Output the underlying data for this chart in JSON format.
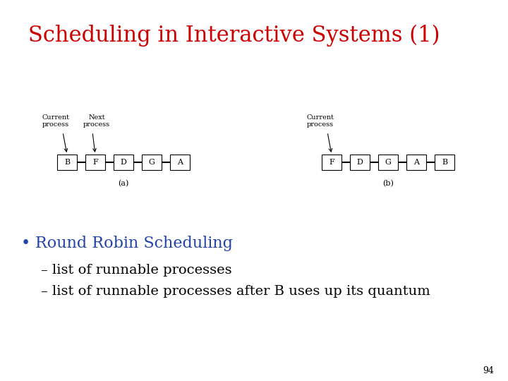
{
  "title": "Scheduling in Interactive Systems (1)",
  "title_color": "#cc0000",
  "title_fontsize": 22,
  "background_color": "#ffffff",
  "bullet_text": "Round Robin Scheduling",
  "bullet_color": "#2244aa",
  "bullet_fontsize": 16,
  "sub_bullet1": "– list of runnable processes",
  "sub_bullet2": "– list of runnable processes after B uses up its quantum",
  "sub_bullet_fontsize": 14,
  "sub_bullet_color": "#000000",
  "page_number": "94",
  "diagram_a_processes": [
    "B",
    "F",
    "D",
    "G",
    "A"
  ],
  "diagram_b_processes": [
    "F",
    "D",
    "G",
    "A",
    "B"
  ],
  "diagram_a_label": "(a)",
  "diagram_b_label": "(b)",
  "box_color": "#ffffff",
  "box_edge_color": "#000000",
  "arrow_color": "#000000",
  "process_fontsize": 8,
  "diagram_label_fontsize": 8,
  "annotation_fontsize": 7
}
